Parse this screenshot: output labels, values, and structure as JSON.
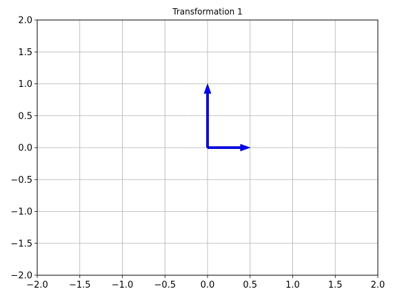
{
  "chart_data": {
    "type": "quiver",
    "title": "Transformation 1",
    "xlabel": "",
    "ylabel": "",
    "xlim": [
      -2,
      2
    ],
    "ylim": [
      -2,
      2
    ],
    "xticks": [
      -2.0,
      -1.5,
      -1.0,
      -0.5,
      0.0,
      0.5,
      1.0,
      1.5,
      2.0
    ],
    "yticks": [
      -2.0,
      -1.5,
      -1.0,
      -0.5,
      0.0,
      0.5,
      1.0,
      1.5,
      2.0
    ],
    "xtick_labels": [
      "−2.0",
      "−1.5",
      "−1.0",
      "−0.5",
      "0.0",
      "0.5",
      "1.0",
      "1.5",
      "2.0"
    ],
    "ytick_labels": [
      "−2.0",
      "−1.5",
      "−1.0",
      "−0.5",
      "0.0",
      "0.5",
      "1.0",
      "1.5",
      "2.0"
    ],
    "grid": true,
    "vectors": [
      {
        "origin": [
          0,
          0
        ],
        "components": [
          0.5,
          0
        ],
        "color": "#0000ff"
      },
      {
        "origin": [
          0,
          0
        ],
        "components": [
          0,
          1.0
        ],
        "color": "#0000ff"
      }
    ],
    "grid_color": "#b0b0b0"
  }
}
